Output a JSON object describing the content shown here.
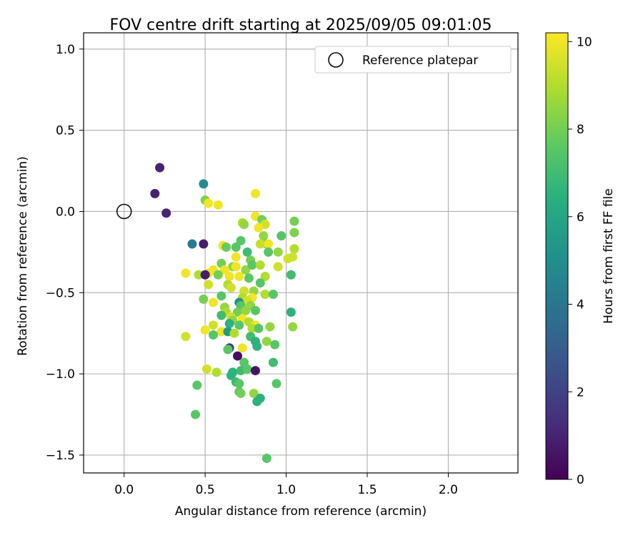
{
  "chart_data": {
    "type": "scatter",
    "title": "FOV centre drift starting at 2025/09/05 09:01:05",
    "xlabel": "Angular distance from reference (arcmin)",
    "ylabel": "Rotation from reference (arcmin)",
    "xlim": [
      -0.25,
      2.43
    ],
    "ylim": [
      -1.61,
      1.1
    ],
    "xticks": [
      0.0,
      0.5,
      1.0,
      1.5,
      2.0
    ],
    "xtick_labels": [
      "0.0",
      "0.5",
      "1.0",
      "1.5",
      "2.0"
    ],
    "yticks": [
      1.0,
      0.5,
      0.0,
      -0.5,
      -1.0,
      -1.5
    ],
    "ytick_labels": [
      "1.0",
      "0.5",
      "0.0",
      "−0.5",
      "−1.0",
      "−1.5"
    ],
    "grid": true,
    "legend": {
      "position": "top-right",
      "entries": [
        "Reference platepar"
      ]
    },
    "reference": {
      "x": 0.0,
      "y": 0.0,
      "label": "Reference platepar"
    },
    "colorbar": {
      "label": "Hours from first FF file",
      "colormap": "viridis",
      "range": [
        0,
        10.2
      ],
      "ticks": [
        0,
        2,
        4,
        6,
        8,
        10
      ],
      "tick_labels": [
        "0",
        "2",
        "4",
        "6",
        "8",
        "10"
      ]
    },
    "points": [
      {
        "x": 0.22,
        "y": 0.27,
        "h": 1.0
      },
      {
        "x": 0.19,
        "y": 0.11,
        "h": 1.0
      },
      {
        "x": 0.26,
        "y": -0.01,
        "h": 1.0
      },
      {
        "x": 0.49,
        "y": 0.17,
        "h": 4.8
      },
      {
        "x": 0.42,
        "y": -0.2,
        "h": 4.2
      },
      {
        "x": 0.49,
        "y": -0.2,
        "h": 0.8
      },
      {
        "x": 0.5,
        "y": 0.07,
        "h": 8.2
      },
      {
        "x": 0.52,
        "y": 0.05,
        "h": 10.0
      },
      {
        "x": 0.58,
        "y": 0.04,
        "h": 10.0
      },
      {
        "x": 0.81,
        "y": 0.11,
        "h": 10.0
      },
      {
        "x": 0.81,
        "y": -0.03,
        "h": 10.0
      },
      {
        "x": 0.85,
        "y": -0.05,
        "h": 8.0
      },
      {
        "x": 0.73,
        "y": -0.07,
        "h": 9.0
      },
      {
        "x": 0.74,
        "y": -0.08,
        "h": 8.5
      },
      {
        "x": 0.87,
        "y": -0.08,
        "h": 9.5
      },
      {
        "x": 0.83,
        "y": -0.1,
        "h": 10.0
      },
      {
        "x": 1.05,
        "y": -0.06,
        "h": 8.0
      },
      {
        "x": 1.05,
        "y": -0.13,
        "h": 8.2
      },
      {
        "x": 0.97,
        "y": -0.15,
        "h": 7.5
      },
      {
        "x": 0.86,
        "y": -0.15,
        "h": 8.5
      },
      {
        "x": 0.88,
        "y": -0.2,
        "h": 8.0
      },
      {
        "x": 0.84,
        "y": -0.2,
        "h": 9.3
      },
      {
        "x": 0.89,
        "y": -0.2,
        "h": 10.0
      },
      {
        "x": 0.72,
        "y": -0.18,
        "h": 7.5
      },
      {
        "x": 0.61,
        "y": -0.21,
        "h": 10.0
      },
      {
        "x": 0.63,
        "y": -0.22,
        "h": 7.8
      },
      {
        "x": 0.69,
        "y": -0.22,
        "h": 7.5
      },
      {
        "x": 0.76,
        "y": -0.25,
        "h": 7.0
      },
      {
        "x": 0.89,
        "y": -0.25,
        "h": 7.5
      },
      {
        "x": 0.95,
        "y": -0.25,
        "h": 8.5
      },
      {
        "x": 1.05,
        "y": -0.23,
        "h": 9.0
      },
      {
        "x": 1.04,
        "y": -0.28,
        "h": 9.5
      },
      {
        "x": 1.01,
        "y": -0.29,
        "h": 9.5
      },
      {
        "x": 0.69,
        "y": -0.28,
        "h": 10.0
      },
      {
        "x": 0.78,
        "y": -0.3,
        "h": 8.0
      },
      {
        "x": 0.6,
        "y": -0.32,
        "h": 8.0
      },
      {
        "x": 0.67,
        "y": -0.34,
        "h": 8.5
      },
      {
        "x": 0.69,
        "y": -0.34,
        "h": 10.0
      },
      {
        "x": 0.75,
        "y": -0.36,
        "h": 8.5
      },
      {
        "x": 0.79,
        "y": -0.33,
        "h": 7.5
      },
      {
        "x": 0.84,
        "y": -0.33,
        "h": 9.0
      },
      {
        "x": 0.95,
        "y": -0.34,
        "h": 9.5
      },
      {
        "x": 0.62,
        "y": -0.36,
        "h": 10.0
      },
      {
        "x": 0.55,
        "y": -0.36,
        "h": 10.0
      },
      {
        "x": 0.52,
        "y": -0.38,
        "h": 10.0
      },
      {
        "x": 0.38,
        "y": -0.38,
        "h": 10.0
      },
      {
        "x": 0.46,
        "y": -0.39,
        "h": 9.0
      },
      {
        "x": 0.5,
        "y": -0.39,
        "h": 0.8
      },
      {
        "x": 0.58,
        "y": -0.39,
        "h": 8.0
      },
      {
        "x": 0.65,
        "y": -0.4,
        "h": 10.0
      },
      {
        "x": 0.71,
        "y": -0.4,
        "h": 10.0
      },
      {
        "x": 0.77,
        "y": -0.41,
        "h": 7.5
      },
      {
        "x": 0.87,
        "y": -0.4,
        "h": 9.0
      },
      {
        "x": 1.03,
        "y": -0.39,
        "h": 7.0
      },
      {
        "x": 0.84,
        "y": -0.44,
        "h": 7.5
      },
      {
        "x": 0.52,
        "y": -0.45,
        "h": 9.5
      },
      {
        "x": 0.64,
        "y": -0.45,
        "h": 9.0
      },
      {
        "x": 0.66,
        "y": -0.47,
        "h": 9.5
      },
      {
        "x": 0.74,
        "y": -0.49,
        "h": 9.5
      },
      {
        "x": 0.8,
        "y": -0.49,
        "h": 8.5
      },
      {
        "x": 0.87,
        "y": -0.51,
        "h": 9.0
      },
      {
        "x": 0.92,
        "y": -0.51,
        "h": 7.5
      },
      {
        "x": 0.6,
        "y": -0.52,
        "h": 7.5
      },
      {
        "x": 0.73,
        "y": -0.53,
        "h": 9.0
      },
      {
        "x": 0.79,
        "y": -0.53,
        "h": 10.0
      },
      {
        "x": 0.76,
        "y": -0.55,
        "h": 9.5
      },
      {
        "x": 0.49,
        "y": -0.54,
        "h": 8.0
      },
      {
        "x": 0.55,
        "y": -0.56,
        "h": 10.0
      },
      {
        "x": 0.71,
        "y": -0.56,
        "h": 5.0
      },
      {
        "x": 0.72,
        "y": -0.58,
        "h": 7.5
      },
      {
        "x": 0.78,
        "y": -0.58,
        "h": 8.5
      },
      {
        "x": 0.62,
        "y": -0.59,
        "h": 8.5
      },
      {
        "x": 0.63,
        "y": -0.62,
        "h": 9.0
      },
      {
        "x": 0.7,
        "y": -0.62,
        "h": 8.0
      },
      {
        "x": 0.75,
        "y": -0.61,
        "h": 8.5
      },
      {
        "x": 0.81,
        "y": -0.61,
        "h": 7.5
      },
      {
        "x": 1.03,
        "y": -0.62,
        "h": 6.5
      },
      {
        "x": 0.6,
        "y": -0.64,
        "h": 7.0
      },
      {
        "x": 0.66,
        "y": -0.65,
        "h": 9.5
      },
      {
        "x": 0.67,
        "y": -0.67,
        "h": 8.5
      },
      {
        "x": 0.73,
        "y": -0.66,
        "h": 10.0
      },
      {
        "x": 0.77,
        "y": -0.68,
        "h": 9.0
      },
      {
        "x": 0.65,
        "y": -0.69,
        "h": 6.5
      },
      {
        "x": 0.55,
        "y": -0.7,
        "h": 9.5
      },
      {
        "x": 0.71,
        "y": -0.7,
        "h": 7.5
      },
      {
        "x": 0.81,
        "y": -0.7,
        "h": 10.0
      },
      {
        "x": 0.79,
        "y": -0.72,
        "h": 9.0
      },
      {
        "x": 0.83,
        "y": -0.72,
        "h": 7.5
      },
      {
        "x": 0.9,
        "y": -0.71,
        "h": 8.5
      },
      {
        "x": 1.04,
        "y": -0.71,
        "h": 8.5
      },
      {
        "x": 0.5,
        "y": -0.73,
        "h": 10.0
      },
      {
        "x": 0.6,
        "y": -0.74,
        "h": 10.0
      },
      {
        "x": 0.64,
        "y": -0.74,
        "h": 5.5
      },
      {
        "x": 0.55,
        "y": -0.76,
        "h": 7.5
      },
      {
        "x": 0.68,
        "y": -0.75,
        "h": 9.0
      },
      {
        "x": 0.38,
        "y": -0.77,
        "h": 9.5
      },
      {
        "x": 0.78,
        "y": -0.77,
        "h": 7.0
      },
      {
        "x": 0.81,
        "y": -0.8,
        "h": 6.5
      },
      {
        "x": 0.88,
        "y": -0.8,
        "h": 8.5
      },
      {
        "x": 0.93,
        "y": -0.82,
        "h": 7.5
      },
      {
        "x": 0.73,
        "y": -0.84,
        "h": 10.0
      },
      {
        "x": 0.82,
        "y": -0.83,
        "h": 6.5
      },
      {
        "x": 0.65,
        "y": -0.84,
        "h": 2.0
      },
      {
        "x": 0.64,
        "y": -0.85,
        "h": 7.5
      },
      {
        "x": 0.7,
        "y": -0.89,
        "h": 0.4
      },
      {
        "x": 0.74,
        "y": -0.93,
        "h": 7.5
      },
      {
        "x": 0.92,
        "y": -0.93,
        "h": 7.0
      },
      {
        "x": 0.51,
        "y": -0.97,
        "h": 9.5
      },
      {
        "x": 0.57,
        "y": -0.99,
        "h": 9.0
      },
      {
        "x": 0.67,
        "y": -0.99,
        "h": 6.5
      },
      {
        "x": 0.72,
        "y": -0.98,
        "h": 7.0
      },
      {
        "x": 0.76,
        "y": -0.97,
        "h": 7.5
      },
      {
        "x": 0.81,
        "y": -0.98,
        "h": 0.6
      },
      {
        "x": 0.66,
        "y": -1.01,
        "h": 6.5
      },
      {
        "x": 0.69,
        "y": -1.05,
        "h": 7.0
      },
      {
        "x": 0.71,
        "y": -1.06,
        "h": 7.5
      },
      {
        "x": 0.45,
        "y": -1.07,
        "h": 7.5
      },
      {
        "x": 0.94,
        "y": -1.06,
        "h": 7.5
      },
      {
        "x": 0.71,
        "y": -1.11,
        "h": 7.5
      },
      {
        "x": 0.72,
        "y": -1.12,
        "h": 8.0
      },
      {
        "x": 0.8,
        "y": -1.12,
        "h": 8.5
      },
      {
        "x": 0.84,
        "y": -1.15,
        "h": 6.5
      },
      {
        "x": 0.82,
        "y": -1.17,
        "h": 6.5
      },
      {
        "x": 0.44,
        "y": -1.25,
        "h": 7.5
      },
      {
        "x": 0.88,
        "y": -1.52,
        "h": 7.5
      }
    ]
  }
}
